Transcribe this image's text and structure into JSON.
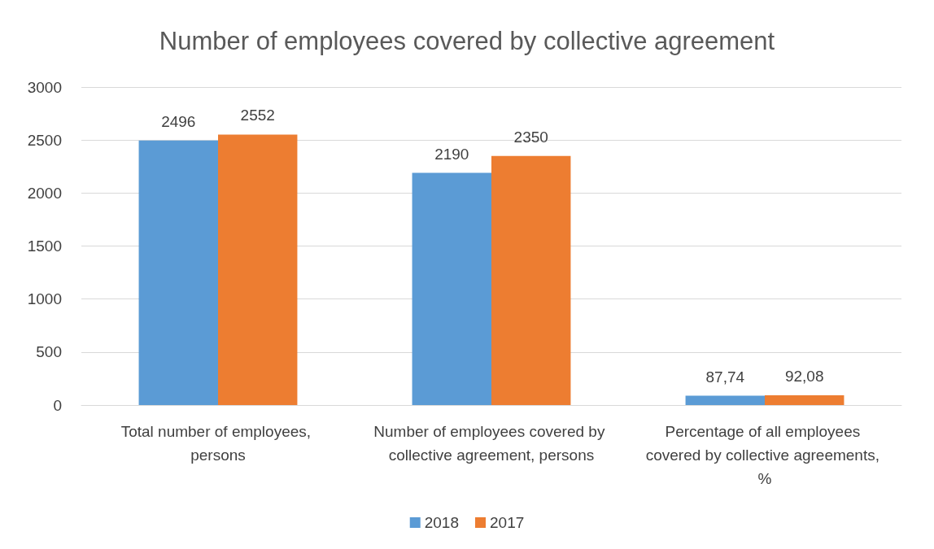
{
  "chart_data": {
    "type": "bar",
    "title": "Number of employees covered by collective agreement",
    "categories": [
      "Total number of employees, persons",
      "Number of employees covered by collective agreement, persons",
      "Percentage of all employees covered by collective agreements, %"
    ],
    "series": [
      {
        "name": "2018",
        "color": "#5b9bd5",
        "values": [
          2496,
          2190,
          87.74
        ],
        "value_labels": [
          "2496",
          "2190",
          "87,74"
        ]
      },
      {
        "name": "2017",
        "color": "#ed7d31",
        "values": [
          2552,
          2350,
          92.08
        ],
        "value_labels": [
          "2552",
          "2350",
          "92,08"
        ]
      }
    ],
    "ylim": [
      0,
      3000
    ],
    "yticks": [
      0,
      500,
      1000,
      1500,
      2000,
      2500,
      3000
    ],
    "grid": "y",
    "legend": "bottom"
  }
}
